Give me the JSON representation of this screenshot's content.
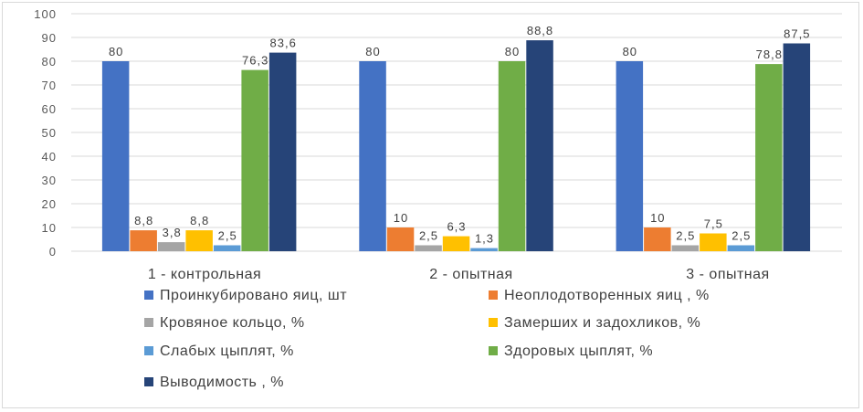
{
  "chart_data": {
    "type": "bar",
    "categories": [
      "1  - контрольная",
      "2 -    опытная",
      "3 -  опытная"
    ],
    "series": [
      {
        "name": "Проинкубировано яиц, шт",
        "color": "#4472C4",
        "values": [
          80,
          80,
          80
        ],
        "labels": [
          "80",
          "80",
          "80"
        ]
      },
      {
        "name": " Неоплодотворенных яиц , %",
        "color": "#ED7D31",
        "values": [
          8.8,
          10,
          10
        ],
        "labels": [
          "8,8",
          "10",
          "10"
        ]
      },
      {
        "name": "Кровяное кольцо, %",
        "color": "#A5A5A5",
        "values": [
          3.8,
          2.5,
          2.5
        ],
        "labels": [
          "3,8",
          "2,5",
          "2,5"
        ]
      },
      {
        "name": " Замерших и задохликов, %",
        "color": "#FFC000",
        "values": [
          8.8,
          6.3,
          7.5
        ],
        "labels": [
          "8,8",
          "6,3",
          "7,5"
        ]
      },
      {
        "name": " Слабых цыплят,  %",
        "color": "#5B9BD5",
        "values": [
          2.5,
          1.3,
          2.5
        ],
        "labels": [
          "2,5",
          "1,3",
          "2,5"
        ]
      },
      {
        "name": "Здоровых цыплят, %",
        "color": "#70AD47",
        "values": [
          76.3,
          80,
          78.8
        ],
        "labels": [
          "76,3",
          "80",
          "78,8"
        ]
      },
      {
        "name": "Выводимость , %",
        "color": "#264478",
        "values": [
          83.6,
          88.8,
          87.5
        ],
        "labels": [
          "83,6",
          "88,8",
          "87,5"
        ]
      }
    ],
    "yticks": [
      "0",
      "10",
      "20",
      "30",
      "40",
      "50",
      "60",
      "70",
      "80",
      "90",
      "100"
    ],
    "ylim": [
      0,
      100
    ],
    "grid": true,
    "legend": "bottom"
  }
}
